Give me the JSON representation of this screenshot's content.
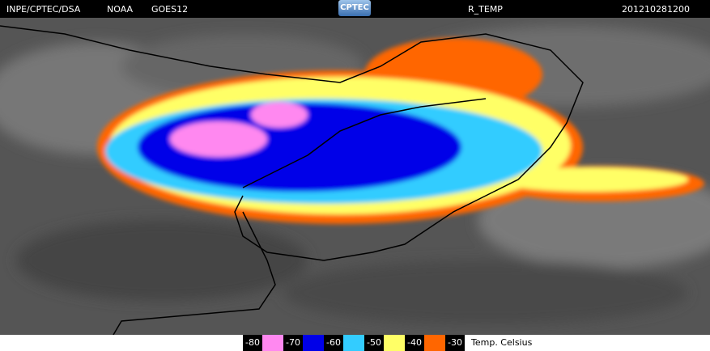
{
  "header": {
    "source": "INPE/CPTEC/DSA",
    "agency": "NOAA",
    "satellite": "GOES12",
    "logo": "CPTEC",
    "product": "R_TEMP",
    "timestamp": "201210281200"
  },
  "legend": {
    "items": [
      {
        "label": "-80",
        "color": "#ff88f0"
      },
      {
        "label": "-70",
        "color": "#0000e8"
      },
      {
        "label": "-60",
        "color": "#33ccff"
      },
      {
        "label": "-50",
        "color": "#ffff66"
      },
      {
        "label": "-40",
        "color": "#ff6600"
      },
      {
        "label": "-30"
      }
    ],
    "unit": "Temp. Celsius"
  }
}
